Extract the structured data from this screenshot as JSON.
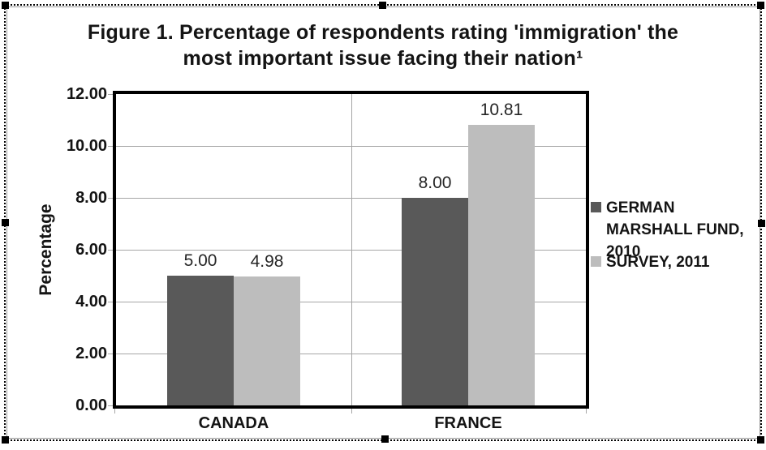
{
  "title": {
    "line1": "Figure 1. Percentage of respondents rating 'immigration' the",
    "line2": "most important issue facing their nation¹"
  },
  "chart_data": {
    "type": "bar",
    "title": "Figure 1. Percentage of respondents rating 'immigration' the most important issue facing their nation¹",
    "categories": [
      "CANADA",
      "FRANCE"
    ],
    "series": [
      {
        "name": "GERMAN MARSHALL FUND, 2010",
        "color": "#595959",
        "values": [
          5.0,
          8.0
        ],
        "value_labels": [
          "5.00",
          "8.00"
        ]
      },
      {
        "name": "SURVEY, 2011",
        "color": "#BDBDBD",
        "values": [
          4.98,
          10.81
        ],
        "value_labels": [
          "4.98",
          "10.81"
        ]
      }
    ],
    "xlabel": "",
    "ylabel": "Percentage",
    "ylim": [
      0,
      12
    ],
    "ytick_step": 2,
    "ytick_labels": [
      "0.00",
      "2.00",
      "4.00",
      "6.00",
      "8.00",
      "10.00",
      "12.00"
    ],
    "grid": true,
    "legend_position": "right"
  },
  "colors": {
    "gridline": "#A6A6A6",
    "axis": "#000000",
    "frame": "#9A9A9A",
    "handle": "#000000"
  }
}
